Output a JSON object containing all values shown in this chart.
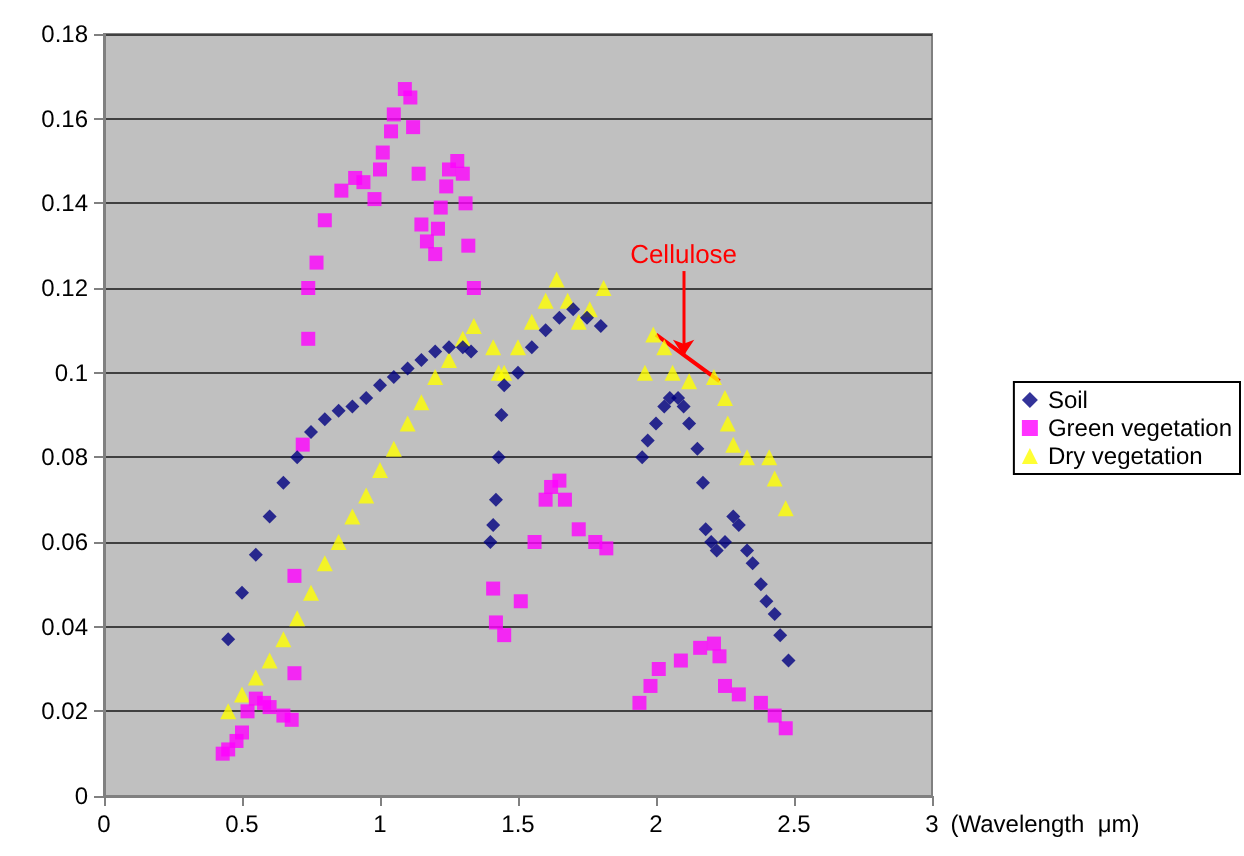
{
  "chart_data": {
    "type": "scatter",
    "xlabel": "(Wavelength  μm)",
    "xlim": [
      0,
      3
    ],
    "xticks": [
      0,
      0.5,
      1,
      1.5,
      2,
      2.5,
      3
    ],
    "ylim": [
      0,
      0.18
    ],
    "yticks": [
      0,
      0.02,
      0.04,
      0.06,
      0.08,
      0.1,
      0.12,
      0.14,
      0.16,
      0.18
    ],
    "grid": "y",
    "legend": "right",
    "annotations": [
      {
        "text": "Cellulose",
        "x": 2.1,
        "y": 0.104
      }
    ],
    "series": [
      {
        "name": "Soil",
        "color": "#000080",
        "marker": "diamond",
        "x": [
          0.45,
          0.5,
          0.55,
          0.6,
          0.65,
          0.7,
          0.75,
          0.8,
          0.85,
          0.9,
          0.95,
          1.0,
          1.05,
          1.1,
          1.15,
          1.2,
          1.25,
          1.3,
          1.33,
          1.4,
          1.41,
          1.42,
          1.43,
          1.44,
          1.45,
          1.5,
          1.55,
          1.6,
          1.65,
          1.7,
          1.75,
          1.8,
          1.95,
          1.97,
          2.0,
          2.03,
          2.05,
          2.08,
          2.1,
          2.12,
          2.15,
          2.17,
          2.18,
          2.2,
          2.22,
          2.25,
          2.28,
          2.3,
          2.33,
          2.35,
          2.38,
          2.4,
          2.43,
          2.45,
          2.48
        ],
        "values": [
          0.037,
          0.048,
          0.057,
          0.066,
          0.074,
          0.08,
          0.086,
          0.089,
          0.091,
          0.092,
          0.094,
          0.097,
          0.099,
          0.101,
          0.103,
          0.105,
          0.106,
          0.106,
          0.105,
          0.06,
          0.064,
          0.07,
          0.08,
          0.09,
          0.097,
          0.1,
          0.106,
          0.11,
          0.113,
          0.115,
          0.113,
          0.111,
          0.08,
          0.084,
          0.088,
          0.092,
          0.094,
          0.094,
          0.092,
          0.088,
          0.082,
          0.074,
          0.063,
          0.06,
          0.058,
          0.06,
          0.066,
          0.064,
          0.058,
          0.055,
          0.05,
          0.046,
          0.043,
          0.038,
          0.032
        ]
      },
      {
        "name": "Green vegetation",
        "color": "#ff00ff",
        "marker": "square",
        "x": [
          0.43,
          0.45,
          0.48,
          0.5,
          0.52,
          0.55,
          0.58,
          0.6,
          0.65,
          0.68,
          0.69,
          0.69,
          0.72,
          0.74,
          0.74,
          0.77,
          0.8,
          0.86,
          0.91,
          0.94,
          0.98,
          1.0,
          1.01,
          1.04,
          1.05,
          1.09,
          1.11,
          1.12,
          1.14,
          1.15,
          1.17,
          1.2,
          1.21,
          1.22,
          1.24,
          1.25,
          1.28,
          1.3,
          1.31,
          1.32,
          1.34,
          1.41,
          1.42,
          1.45,
          1.51,
          1.56,
          1.6,
          1.62,
          1.65,
          1.67,
          1.72,
          1.78,
          1.82,
          1.94,
          1.98,
          2.01,
          2.09,
          2.16,
          2.21,
          2.23,
          2.25,
          2.3,
          2.38,
          2.43,
          2.47
        ],
        "values": [
          0.01,
          0.011,
          0.013,
          0.015,
          0.02,
          0.023,
          0.022,
          0.021,
          0.019,
          0.018,
          0.029,
          0.052,
          0.083,
          0.108,
          0.12,
          0.126,
          0.136,
          0.143,
          0.146,
          0.145,
          0.141,
          0.148,
          0.152,
          0.157,
          0.161,
          0.167,
          0.165,
          0.158,
          0.147,
          0.135,
          0.131,
          0.128,
          0.134,
          0.139,
          0.144,
          0.148,
          0.15,
          0.147,
          0.14,
          0.13,
          0.12,
          0.049,
          0.041,
          0.038,
          0.046,
          0.06,
          0.07,
          0.073,
          0.0745,
          0.07,
          0.063,
          0.06,
          0.0585,
          0.022,
          0.026,
          0.03,
          0.032,
          0.035,
          0.036,
          0.033,
          0.026,
          0.024,
          0.022,
          0.019,
          0.016
        ]
      },
      {
        "name": "Dry vegetation",
        "color": "#ffff00",
        "marker": "triangle",
        "x": [
          0.45,
          0.5,
          0.55,
          0.6,
          0.65,
          0.7,
          0.75,
          0.8,
          0.85,
          0.9,
          0.95,
          1.0,
          1.05,
          1.1,
          1.15,
          1.2,
          1.25,
          1.3,
          1.34,
          1.41,
          1.43,
          1.45,
          1.5,
          1.55,
          1.6,
          1.64,
          1.68,
          1.72,
          1.76,
          1.81,
          1.96,
          1.99,
          2.03,
          2.06,
          2.12,
          2.21,
          2.25,
          2.26,
          2.28,
          2.33,
          2.41,
          2.43,
          2.47
        ],
        "values": [
          0.02,
          0.024,
          0.028,
          0.032,
          0.037,
          0.042,
          0.048,
          0.055,
          0.06,
          0.066,
          0.071,
          0.077,
          0.082,
          0.088,
          0.093,
          0.099,
          0.103,
          0.108,
          0.111,
          0.106,
          0.1,
          0.1,
          0.106,
          0.112,
          0.117,
          0.122,
          0.117,
          0.112,
          0.115,
          0.12,
          0.1,
          0.109,
          0.106,
          0.1,
          0.098,
          0.099,
          0.094,
          0.088,
          0.083,
          0.08,
          0.08,
          0.075,
          0.068
        ]
      },
      {
        "type": "line",
        "color": "#ff0000",
        "x": [
          2.0,
          2.23
        ],
        "values": [
          0.109,
          0.098
        ]
      }
    ]
  }
}
